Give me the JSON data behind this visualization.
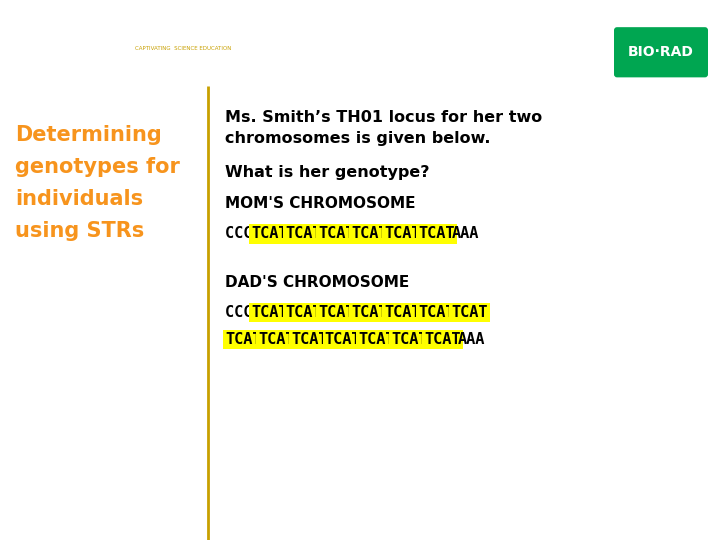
{
  "header_bg": "#000000",
  "header_bar_color": "#E8751A",
  "biorad_green": "#00A651",
  "left_title_color": "#F7941D",
  "divider_color": "#C8A000",
  "body_text_color": "#000000",
  "intro_text_line1": "Ms. Smith’s TH01 locus for her two",
  "intro_text_line2": "chromosomes is given below.",
  "question_text": "What is her genotype?",
  "mom_label": "MOM'S CHROMOSOME",
  "dad_label": "DAD'S CHROMOSOME",
  "highlight_color": "#FFFF00",
  "left_title_lines": [
    "Determining",
    "genotypes for",
    "individuals",
    "using STRs"
  ]
}
